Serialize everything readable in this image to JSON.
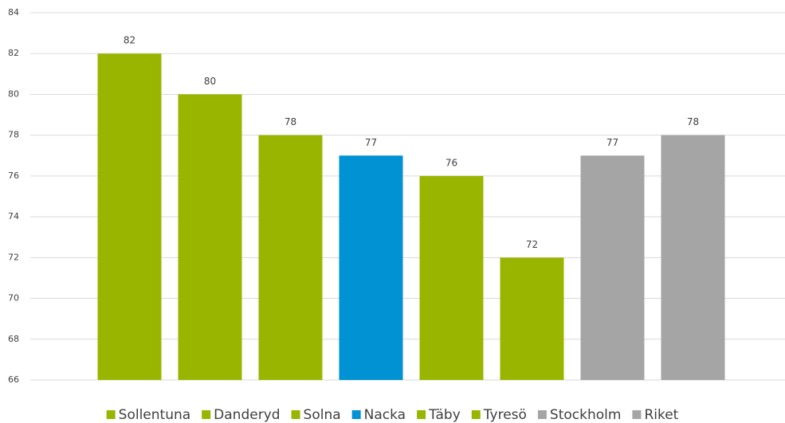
{
  "chart_data": {
    "type": "bar",
    "categories": [
      "Sollentuna",
      "Danderyd",
      "Solna",
      "Nacka",
      "Täby",
      "Tyresö",
      "Stockholm",
      "Riket"
    ],
    "values": [
      82,
      80,
      78,
      77,
      76,
      72,
      77,
      78
    ],
    "colors": [
      "#9ab500",
      "#9ab500",
      "#9ab500",
      "#0092d2",
      "#9ab500",
      "#9ab500",
      "#a5a5a5",
      "#a5a5a5"
    ],
    "ylim": [
      66,
      84
    ],
    "yticks": [
      66,
      68,
      70,
      72,
      74,
      76,
      78,
      80,
      82,
      84
    ],
    "grid": true,
    "legend": "bottom"
  }
}
